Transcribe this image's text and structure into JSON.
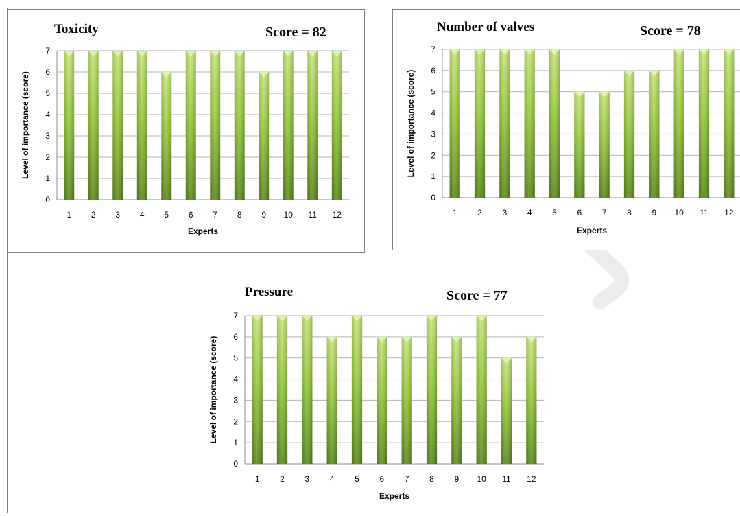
{
  "colors": {
    "bar_light": "#c6e77c",
    "bar_mid": "#98c93c",
    "bar_dark": "#5d8a1e",
    "grid": "#b3b3b3",
    "frame": "#7f7f7f",
    "watermark": "#ececec"
  },
  "chart_data": [
    {
      "type": "bar",
      "title": "Toxicity",
      "score_label": "Score = 82",
      "xlabel": "Experts",
      "ylabel": "Level of importance (score)",
      "categories": [
        "1",
        "2",
        "3",
        "4",
        "5",
        "6",
        "7",
        "8",
        "9",
        "10",
        "11",
        "12"
      ],
      "values": [
        7,
        7,
        7,
        7,
        6,
        7,
        7,
        7,
        6,
        7,
        7,
        7
      ],
      "ylim": [
        0,
        7
      ],
      "yticks": [
        0,
        1,
        2,
        3,
        4,
        5,
        6,
        7
      ],
      "grid": true
    },
    {
      "type": "bar",
      "title": "Number of valves",
      "score_label": "Score = 78",
      "xlabel": "Experts",
      "ylabel": "Level of importance (score)",
      "categories": [
        "1",
        "2",
        "3",
        "4",
        "5",
        "6",
        "7",
        "8",
        "9",
        "10",
        "11",
        "12"
      ],
      "values": [
        7,
        7,
        7,
        7,
        7,
        5,
        5,
        6,
        6,
        7,
        7,
        7
      ],
      "ylim": [
        0,
        7
      ],
      "yticks": [
        0,
        1,
        2,
        3,
        4,
        5,
        6,
        7
      ],
      "grid": true
    },
    {
      "type": "bar",
      "title": "Pressure",
      "score_label": "Score = 77",
      "xlabel": "Experts",
      "ylabel": "Level of importance (score)",
      "categories": [
        "1",
        "2",
        "3",
        "4",
        "5",
        "6",
        "7",
        "8",
        "9",
        "10",
        "11",
        "12"
      ],
      "values": [
        7,
        7,
        7,
        6,
        7,
        6,
        6,
        7,
        6,
        7,
        5,
        6
      ],
      "ylim": [
        0,
        7
      ],
      "yticks": [
        0,
        1,
        2,
        3,
        4,
        5,
        6,
        7
      ],
      "grid": true
    }
  ]
}
